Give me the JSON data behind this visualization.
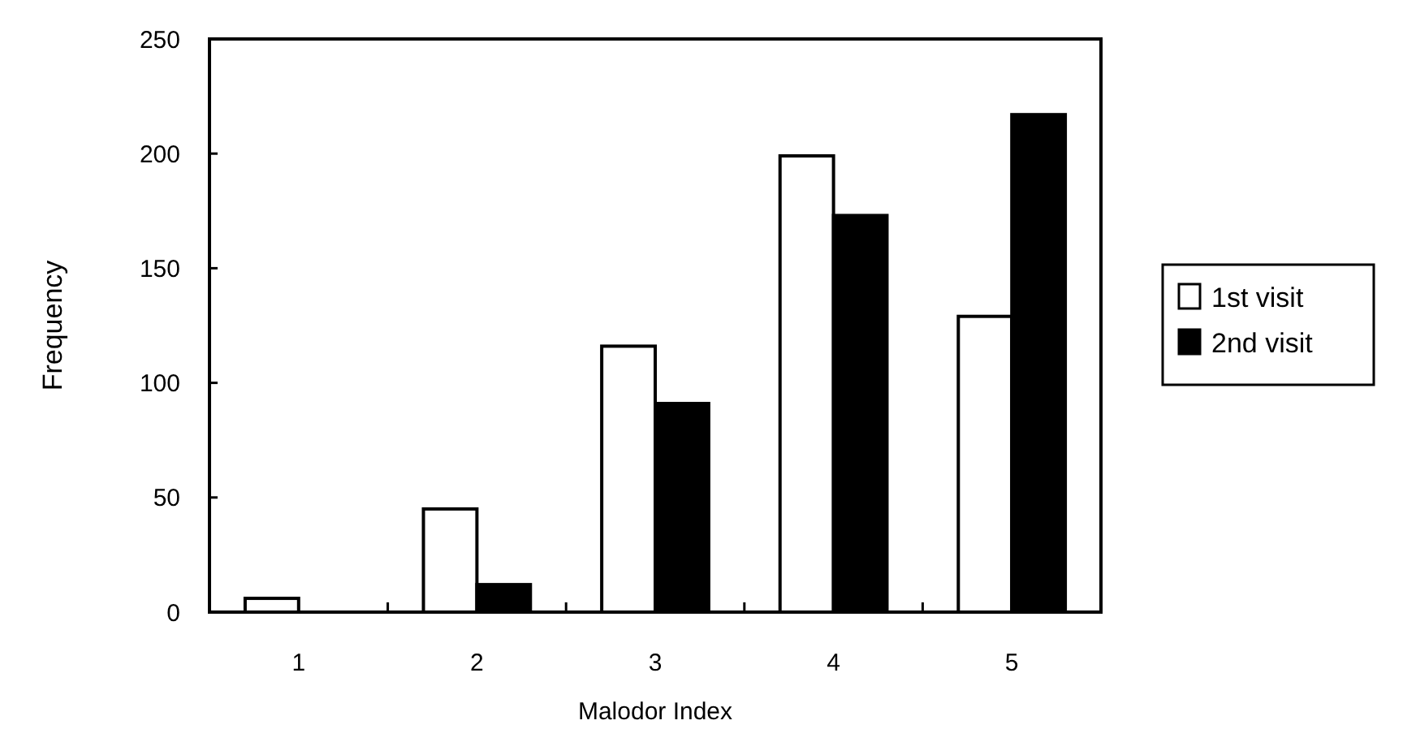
{
  "chart_data": {
    "type": "bar",
    "xlabel": "Malodor Index",
    "ylabel": "Frequency",
    "categories": [
      "1",
      "2",
      "3",
      "4",
      "5"
    ],
    "series": [
      {
        "name": "1st visit",
        "color": "#ffffff",
        "values": [
          6,
          45,
          116,
          199,
          129
        ]
      },
      {
        "name": "2nd visit",
        "color": "#000000",
        "values": [
          0,
          12,
          91,
          173,
          217
        ]
      }
    ],
    "ylim": [
      0,
      250
    ],
    "yticks": [
      0,
      50,
      100,
      150,
      200,
      250
    ],
    "grid": false,
    "legend": "right"
  }
}
